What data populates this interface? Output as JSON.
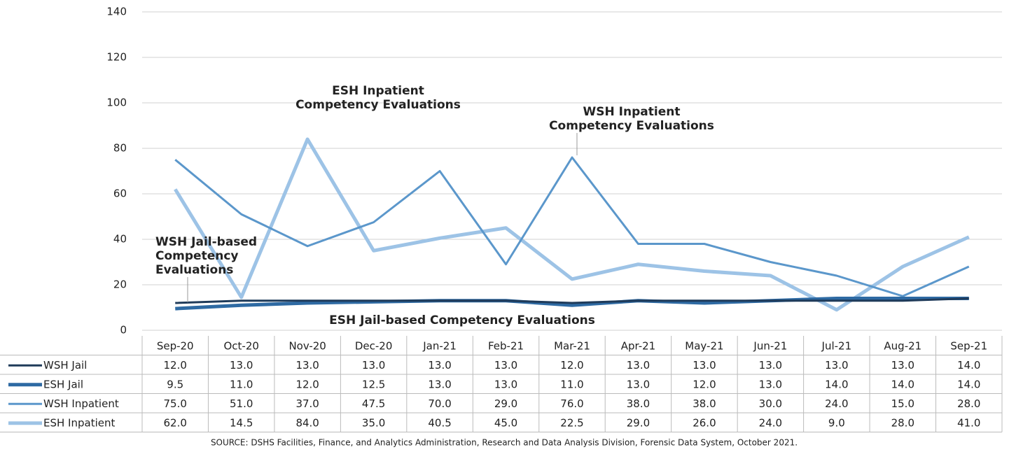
{
  "chart_data": {
    "type": "line",
    "categories": [
      "Sep-20",
      "Oct-20",
      "Nov-20",
      "Dec-20",
      "Jan-21",
      "Feb-21",
      "Mar-21",
      "Apr-21",
      "May-21",
      "Jun-21",
      "Jul-21",
      "Aug-21",
      "Sep-21"
    ],
    "series": [
      {
        "name": "WSH Jail",
        "color": "#1f3b5a",
        "values": [
          12,
          13,
          13,
          13,
          13,
          13,
          12,
          13,
          13,
          13,
          13,
          13,
          14
        ],
        "value_labels": [
          "12.0",
          "13.0",
          "13.0",
          "13.0",
          "13.0",
          "13.0",
          "12.0",
          "13.0",
          "13.0",
          "13.0",
          "13.0",
          "13.0",
          "14.0"
        ]
      },
      {
        "name": "ESH Jail",
        "color": "#2e6aa3",
        "values": [
          9.5,
          11,
          12,
          12.5,
          13,
          13,
          11,
          13,
          12,
          13,
          14,
          14,
          14
        ],
        "value_labels": [
          "9.5",
          "11.0",
          "12.0",
          "12.5",
          "13.0",
          "13.0",
          "11.0",
          "13.0",
          "12.0",
          "13.0",
          "14.0",
          "14.0",
          "14.0"
        ]
      },
      {
        "name": "WSH Inpatient",
        "color": "#5b97cb",
        "values": [
          75,
          51,
          37,
          47.5,
          70,
          29,
          76,
          38,
          38,
          30,
          24,
          15,
          28
        ],
        "value_labels": [
          "75.0",
          "51.0",
          "37.0",
          "47.5",
          "70.0",
          "29.0",
          "76.0",
          "38.0",
          "38.0",
          "30.0",
          "24.0",
          "15.0",
          "28.0"
        ]
      },
      {
        "name": "ESH Inpatient",
        "color": "#9dc3e6",
        "values": [
          62,
          14.5,
          84,
          35,
          40.5,
          45,
          22.5,
          29,
          26,
          24,
          9,
          28,
          41
        ],
        "value_labels": [
          "62.0",
          "14.5",
          "84.0",
          "35.0",
          "40.5",
          "45.0",
          "22.5",
          "29.0",
          "26.0",
          "24.0",
          "9.0",
          "28.0",
          "41.0"
        ]
      }
    ],
    "ylim": [
      0,
      140
    ],
    "yticks": [
      0,
      20,
      40,
      60,
      80,
      100,
      120,
      140
    ],
    "grid": true,
    "annotations": [
      {
        "lines": [
          "ESH Inpatient",
          "Competency Evaluations"
        ],
        "color": "#5b97cb"
      },
      {
        "lines": [
          "WSH Inpatient",
          "Competency Evaluations"
        ],
        "color": "#4a8ac4"
      },
      {
        "lines": [
          "WSH Jail-based",
          "Competency",
          "Evaluations"
        ],
        "color": "#1f4e79"
      },
      {
        "lines": [
          "ESH Jail-based Competency Evaluations"
        ],
        "color": "#2e6aa3"
      }
    ],
    "source": "SOURCE: DSHS Facilities, Finance, and Analytics Administration, Research and Data Analysis Division, Forensic Data System, October 2021."
  }
}
